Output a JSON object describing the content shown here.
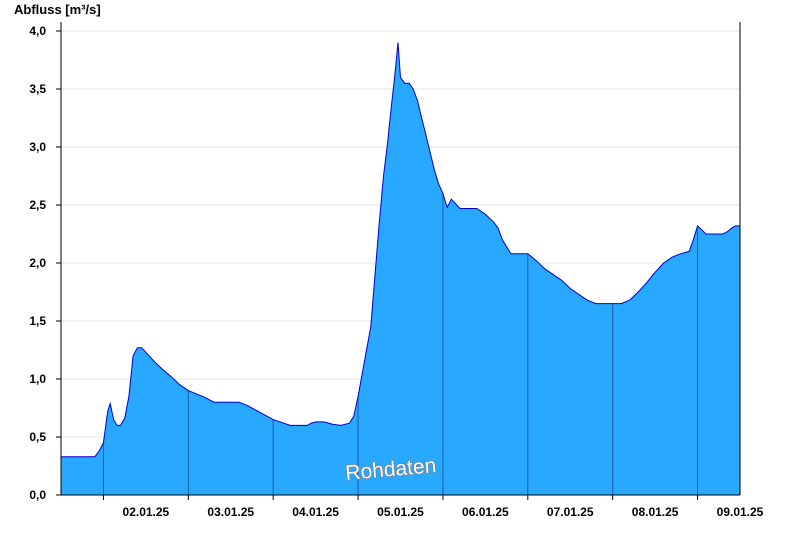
{
  "chart_data": {
    "type": "area",
    "ylabel": "Abfluss [m³/s]",
    "watermark": "Rohdaten",
    "ylim": [
      0,
      4.0
    ],
    "y_ticks": [
      "0,0",
      "0,5",
      "1,0",
      "1,5",
      "2,0",
      "2,5",
      "3,0",
      "3,5",
      "4,0"
    ],
    "x_ticks": [
      "02.01.25",
      "03.01.25",
      "04.01.25",
      "05.01.25",
      "06.01.25",
      "07.01.25",
      "08.01.25",
      "09.01.25"
    ],
    "x_range_days": [
      1.5,
      9.5
    ],
    "grid": true,
    "colors": {
      "fill": "#29a8ff",
      "line": "#0000cc",
      "grid": "#e6e6e6",
      "day_separator": "#1a5ea0"
    },
    "series": [
      {
        "x_days": [
          1.5,
          1.9,
          1.92,
          1.95,
          2.0,
          2.05,
          2.08,
          2.12,
          2.16,
          2.2,
          2.25,
          2.3,
          2.35,
          2.4,
          2.45,
          2.5,
          2.6,
          2.7,
          2.8,
          2.9,
          3.0,
          3.2,
          3.3,
          3.4,
          3.5,
          3.6,
          3.7,
          3.8,
          4.0,
          4.2,
          4.3,
          4.4,
          4.45,
          4.5,
          4.6,
          4.7,
          4.8,
          4.9,
          4.95,
          5.0,
          5.05,
          5.1,
          5.15,
          5.2,
          5.25,
          5.3,
          5.35,
          5.37,
          5.4,
          5.43,
          5.47,
          5.5,
          5.55,
          5.6,
          5.65,
          5.7,
          5.75,
          5.8,
          5.85,
          5.9,
          5.95,
          6.0,
          6.02,
          6.05,
          6.1,
          6.2,
          6.3,
          6.4,
          6.5,
          6.6,
          6.65,
          6.7,
          6.8,
          6.9,
          7.0,
          7.1,
          7.2,
          7.3,
          7.4,
          7.5,
          7.6,
          7.7,
          7.8,
          8.0,
          8.1,
          8.2,
          8.3,
          8.4,
          8.5,
          8.6,
          8.7,
          8.8,
          8.9,
          8.95,
          9.0,
          9.1,
          9.2,
          9.3,
          9.35,
          9.4,
          9.45,
          9.5
        ],
        "values": [
          0.33,
          0.33,
          0.35,
          0.38,
          0.45,
          0.72,
          0.79,
          0.65,
          0.6,
          0.6,
          0.66,
          0.85,
          1.2,
          1.27,
          1.27,
          1.23,
          1.15,
          1.08,
          1.02,
          0.95,
          0.9,
          0.84,
          0.8,
          0.8,
          0.8,
          0.8,
          0.77,
          0.73,
          0.65,
          0.6,
          0.6,
          0.6,
          0.62,
          0.63,
          0.63,
          0.61,
          0.6,
          0.62,
          0.68,
          0.85,
          1.05,
          1.25,
          1.45,
          1.9,
          2.35,
          2.75,
          3.05,
          3.2,
          3.4,
          3.6,
          3.9,
          3.6,
          3.55,
          3.55,
          3.5,
          3.4,
          3.25,
          3.1,
          2.95,
          2.8,
          2.68,
          2.6,
          2.55,
          2.48,
          2.55,
          2.47,
          2.47,
          2.47,
          2.42,
          2.35,
          2.3,
          2.2,
          2.08,
          2.08,
          2.08,
          2.02,
          1.95,
          1.9,
          1.85,
          1.78,
          1.73,
          1.68,
          1.65,
          1.65,
          1.65,
          1.68,
          1.75,
          1.83,
          1.92,
          2.0,
          2.05,
          2.08,
          2.1,
          2.2,
          2.32,
          2.25,
          2.25,
          2.25,
          2.27,
          2.3,
          2.32,
          2.32
        ]
      }
    ]
  }
}
